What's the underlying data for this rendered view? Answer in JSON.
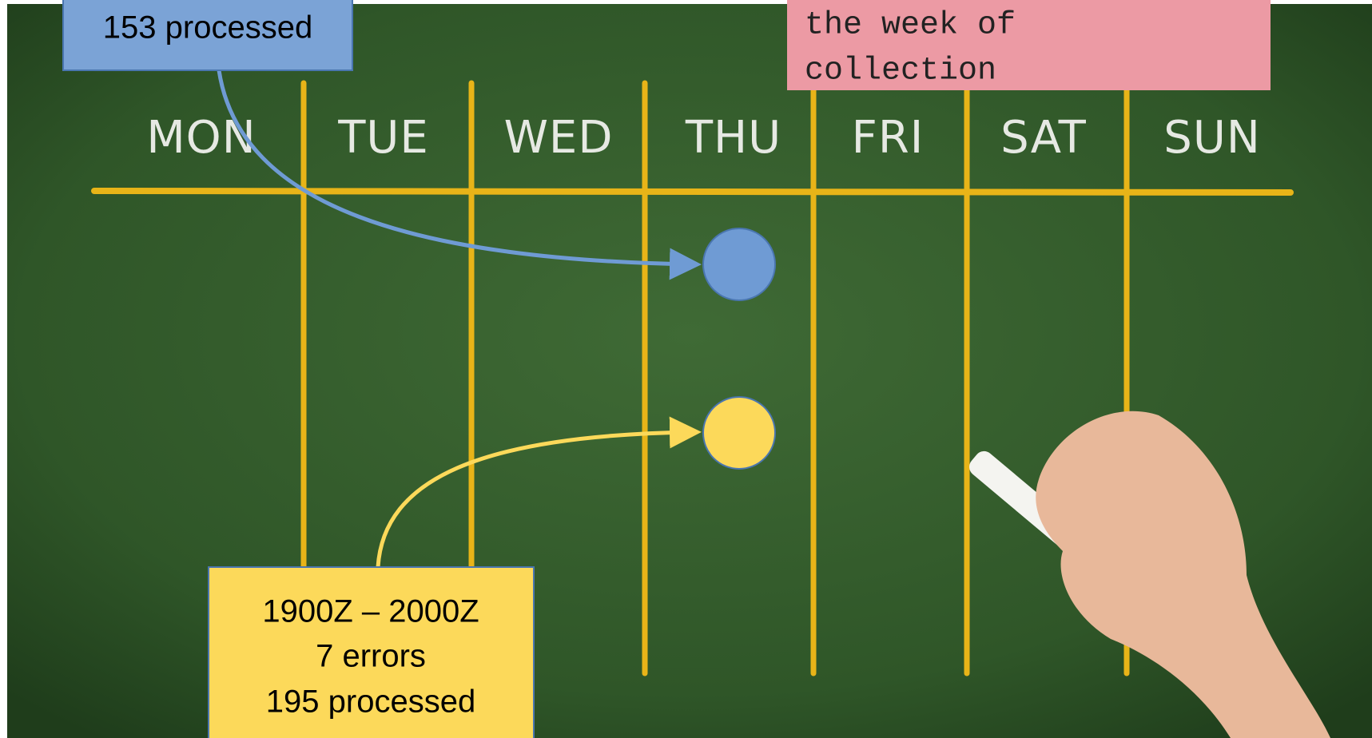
{
  "days": [
    "MON",
    "TUE",
    "WED",
    "THU",
    "FRI",
    "SAT",
    "SUN"
  ],
  "callouts": {
    "processed_box": {
      "lines": [
        "153 processed"
      ]
    },
    "week_box": {
      "lines": [
        "the week of",
        "collection"
      ]
    },
    "errors_box": {
      "lines": [
        "1900Z – 2000Z",
        "7 errors",
        "195 processed"
      ]
    }
  }
}
